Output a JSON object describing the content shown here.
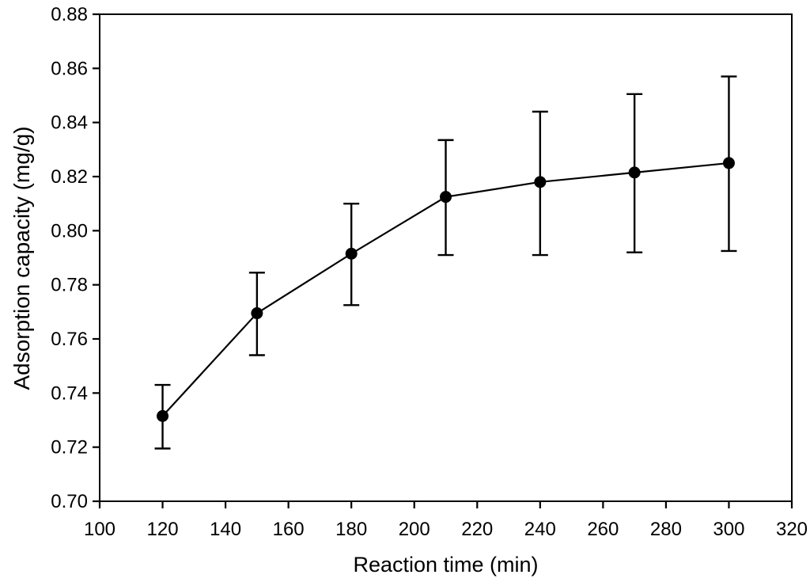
{
  "chart_data": {
    "type": "line",
    "title": "",
    "xlabel": "Reaction time (min)",
    "ylabel": "Adsorption capacity (mg/g)",
    "x": [
      120,
      150,
      180,
      210,
      240,
      270,
      300
    ],
    "series": [
      {
        "name": "Adsorption capacity",
        "values": [
          0.7315,
          0.7695,
          0.7915,
          0.8125,
          0.818,
          0.8215,
          0.825
        ],
        "error_plus": [
          0.0115,
          0.015,
          0.0185,
          0.021,
          0.026,
          0.029,
          0.032
        ],
        "error_minus": [
          0.012,
          0.0155,
          0.019,
          0.0215,
          0.027,
          0.0295,
          0.0325
        ]
      }
    ],
    "xlim": [
      100,
      320
    ],
    "ylim": [
      0.7,
      0.88
    ],
    "xticks": [
      100,
      120,
      140,
      160,
      180,
      200,
      220,
      240,
      260,
      280,
      300,
      320
    ],
    "yticks": [
      0.7,
      0.72,
      0.74,
      0.76,
      0.78,
      0.8,
      0.82,
      0.84,
      0.86,
      0.88
    ],
    "ytick_decimals": 2,
    "grid": false,
    "legend": "none",
    "marker": "filled-circle",
    "error_bars": true,
    "line_color": "#000000",
    "marker_color": "#000000",
    "axis_color": "#000000",
    "background_color": "#ffffff"
  }
}
